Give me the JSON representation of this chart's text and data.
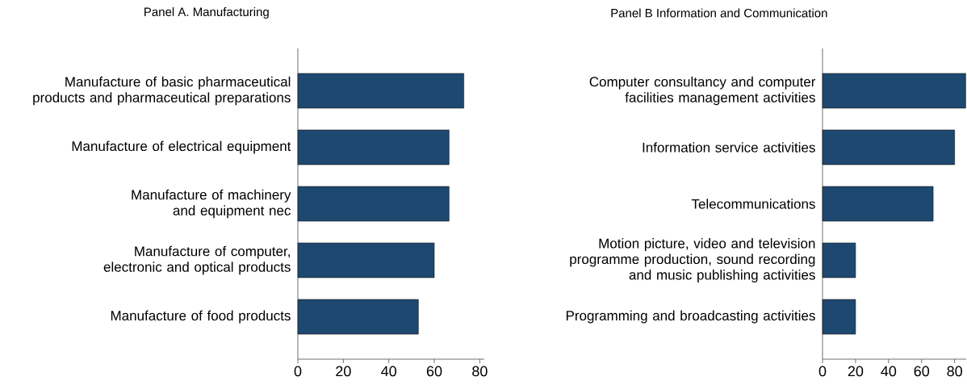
{
  "chart_data": [
    {
      "type": "bar",
      "orientation": "horizontal",
      "title": "Panel A. Manufacturing",
      "categories": [
        "Manufacture of basic pharmaceutical products and pharmaceutical preparations",
        "Manufacture of electrical equipment",
        "Manufacture of machinery and equipment nec",
        "Manufacture of computer, electronic and optical products",
        "Manufacture of food products"
      ],
      "values": [
        73,
        66.5,
        66.5,
        60,
        53
      ],
      "color": "#1d4870",
      "xlim": [
        0,
        82
      ],
      "xticks": [
        0,
        20,
        40,
        60,
        80
      ]
    },
    {
      "type": "bar",
      "orientation": "horizontal",
      "title": "Panel B Information and Communication",
      "categories": [
        "Computer consultancy and computer facilities management activities",
        "Information service activities",
        "Telecommunications",
        "Motion picture, video and television programme production, sound recording and music publishing activities",
        "Programming and broadcasting activities"
      ],
      "values": [
        86.7,
        80,
        67,
        20,
        20
      ],
      "color": "#1d4870",
      "xlim": [
        0,
        87
      ],
      "xticks": [
        0,
        20,
        40,
        60,
        80
      ]
    }
  ]
}
